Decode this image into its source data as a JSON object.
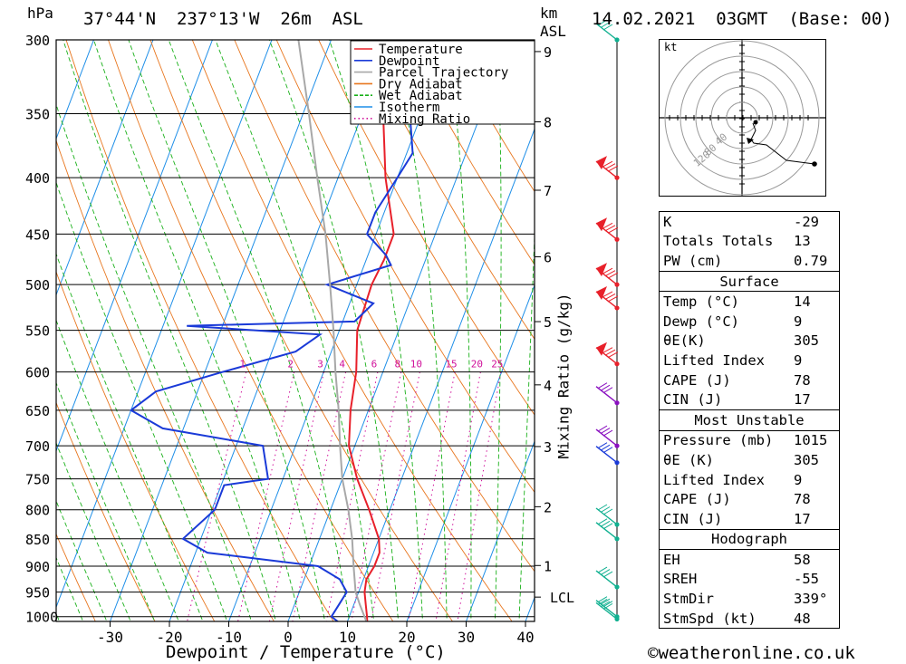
{
  "header": {
    "pressure_unit": "hPa",
    "location": "37°44'N  237°13'W  26m  ASL",
    "km_unit": "km",
    "asl": "ASL",
    "datetime": "14.02.2021  03GMT  (Base: 00)"
  },
  "legend": [
    "Temperature",
    "Dewpoint",
    "Parcel Trajectory",
    "Dry Adiabat",
    "Wet Adiabat",
    "Isotherm",
    "Mixing Ratio"
  ],
  "colors": {
    "temperature": "#e8202a",
    "dewpoint": "#1a3ad8",
    "parcel": "#a8a8a8",
    "dry_adiabat": "#e8761e",
    "wet_adiabat": "#19b019",
    "isotherm": "#1f8fe8",
    "mixing_ratio": "#d0109a",
    "wind_red": "#e8202a",
    "wind_purple": "#8a10c0",
    "wind_teal": "#10b090"
  },
  "chart_data": {
    "type": "line",
    "title": "37°44'N  237°13'W  26m  ASL",
    "xlabel": "Dewpoint / Temperature (°C)",
    "ylabel": "hPa",
    "xlim": [
      -40,
      40
    ],
    "x_ticks": [
      "-30",
      "-20",
      "-10",
      "0",
      "10",
      "20",
      "30",
      "40"
    ],
    "pressure_levels": [
      300,
      350,
      400,
      450,
      500,
      550,
      600,
      650,
      700,
      750,
      800,
      850,
      900,
      950,
      1000
    ],
    "km_ticks": [
      "9",
      "8",
      "7",
      "6",
      "5",
      "4",
      "3",
      "2",
      "1",
      "LCL"
    ],
    "km_label": "Mixing Ratio (g/kg)",
    "mixing_ratio_labels": [
      "1",
      "2",
      "3",
      "4",
      "6",
      "8",
      "10",
      "15",
      "20",
      "25"
    ],
    "series": [
      {
        "name": "Temperature",
        "p": [
          1015,
          1000,
          975,
          950,
          925,
          900,
          875,
          850,
          800,
          750,
          700,
          650,
          600,
          550,
          500,
          475,
          450,
          400,
          350,
          300
        ],
        "t": [
          13.5,
          13,
          12,
          11,
          10.5,
          11,
          11,
          10,
          6.5,
          2.5,
          -1,
          -3,
          -4.5,
          -7,
          -7.5,
          -7,
          -7,
          -12,
          -16.5,
          -23
        ]
      },
      {
        "name": "Dewpoint",
        "p": [
          1015,
          1000,
          975,
          950,
          925,
          900,
          875,
          850,
          800,
          760,
          750,
          700,
          675,
          650,
          625,
          600,
          575,
          555,
          545,
          540,
          520,
          500,
          480,
          470,
          450,
          430,
          400,
          380,
          350,
          330,
          300
        ],
        "t": [
          9,
          7,
          7.5,
          8,
          6,
          1.5,
          -18,
          -23,
          -19.5,
          -19.5,
          -12.5,
          -15.5,
          -33.5,
          -40,
          -37,
          -27,
          -16,
          -13,
          -36,
          -8,
          -6,
          -15,
          -5.5,
          -7,
          -11.5,
          -11.5,
          -10,
          -9,
          -12,
          -14,
          -19
        ]
      },
      {
        "name": "Parcel Trajectory",
        "p": [
          1015,
          975,
          950,
          900,
          850,
          800,
          750,
          700,
          650,
          600,
          550,
          500,
          450,
          400,
          350,
          300
        ],
        "t": [
          13.5,
          11,
          9.5,
          7.5,
          5.5,
          3,
          0,
          -2.5,
          -5,
          -8,
          -11,
          -14.5,
          -18.5,
          -23.5,
          -29,
          -35.5
        ]
      }
    ],
    "winds": [
      {
        "p": 300,
        "color": "teal"
      },
      {
        "p": 400,
        "color": "red"
      },
      {
        "p": 455,
        "color": "red"
      },
      {
        "p": 500,
        "color": "red"
      },
      {
        "p": 525,
        "color": "red"
      },
      {
        "p": 590,
        "color": "red"
      },
      {
        "p": 640,
        "color": "purple"
      },
      {
        "p": 700,
        "color": "purple"
      },
      {
        "p": 725,
        "color": "blue"
      },
      {
        "p": 825,
        "color": "teal"
      },
      {
        "p": 850,
        "color": "teal"
      },
      {
        "p": 940,
        "color": "teal"
      },
      {
        "p": 1000,
        "color": "teal"
      },
      {
        "p": 1005,
        "color": "teal"
      }
    ]
  },
  "hodograph": {
    "unit": "kt",
    "ring_labels": [
      "40",
      "80",
      "120"
    ]
  },
  "indices": {
    "rows": [
      {
        "k": "K",
        "v": "-29"
      },
      {
        "k": "Totals Totals",
        "v": "13"
      },
      {
        "k": "PW (cm)",
        "v": "0.79"
      }
    ],
    "surface_title": "Surface",
    "surface": [
      {
        "k": "Temp (°C)",
        "v": "14"
      },
      {
        "k": "Dewp (°C)",
        "v": "9"
      },
      {
        "k": "θE(K)",
        "v": "305"
      },
      {
        "k": "Lifted Index",
        "v": "9"
      },
      {
        "k": "CAPE (J)",
        "v": "78"
      },
      {
        "k": "CIN (J)",
        "v": "17"
      }
    ],
    "mu_title": "Most Unstable",
    "mu": [
      {
        "k": "Pressure (mb)",
        "v": "1015"
      },
      {
        "k": "θE (K)",
        "v": "305"
      },
      {
        "k": "Lifted Index",
        "v": "9"
      },
      {
        "k": "CAPE (J)",
        "v": "78"
      },
      {
        "k": "CIN (J)",
        "v": "17"
      }
    ],
    "hodo_title": "Hodograph",
    "hodo": [
      {
        "k": "EH",
        "v": "58"
      },
      {
        "k": "SREH",
        "v": "-55"
      },
      {
        "k": "StmDir",
        "v": "339°"
      },
      {
        "k": "StmSpd (kt)",
        "v": "48"
      }
    ]
  },
  "footer": "©weatheronline.co.uk"
}
